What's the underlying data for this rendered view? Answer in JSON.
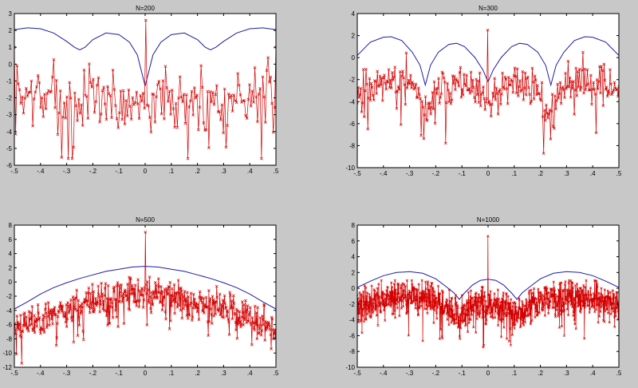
{
  "figure": {
    "background": "#c8c8c8",
    "plot_background": "#ffffff",
    "axes_color": "#000000"
  },
  "chart_data": [
    {
      "type": "line",
      "title": "N=200",
      "xlim": [
        -0.5,
        0.5
      ],
      "ylim": [
        -6,
        3
      ],
      "xticks": [
        -0.5,
        -0.4,
        -0.3,
        -0.2,
        -0.1,
        0,
        0.1,
        0.2,
        0.3,
        0.4,
        0.5
      ],
      "yticks": [
        -6,
        -5,
        -4,
        -3,
        -2,
        -1,
        0,
        1,
        2,
        3
      ],
      "grid": false,
      "series": [
        {
          "style": "line",
          "color": "#1c1ca8",
          "x": [
            -0.5,
            -0.45,
            -0.4,
            -0.35,
            -0.3,
            -0.27,
            -0.25,
            -0.23,
            -0.2,
            -0.15,
            -0.1,
            -0.06,
            -0.03,
            0,
            0.03,
            0.06,
            0.1,
            0.15,
            0.2,
            0.23,
            0.25,
            0.27,
            0.3,
            0.35,
            0.4,
            0.45,
            0.5
          ],
          "y": [
            2.05,
            2.15,
            2.1,
            1.85,
            1.35,
            1.0,
            0.85,
            1.0,
            1.45,
            1.85,
            1.75,
            1.3,
            0.55,
            -1.3,
            0.55,
            1.3,
            1.75,
            1.85,
            1.45,
            1.0,
            0.85,
            1.0,
            1.35,
            1.85,
            2.1,
            2.15,
            2.05
          ]
        },
        {
          "style": "line-x-markers",
          "color": "#d40000",
          "n": 200,
          "seed": 7,
          "env": {
            "x": [
              -0.5,
              -0.3,
              -0.15,
              -0.05,
              0,
              0.05,
              0.15,
              0.3,
              0.5
            ],
            "y": [
              -2.0,
              -1.9,
              -2.0,
              -2.2,
              -2.2,
              -2.2,
              -2.0,
              -1.9,
              -2.0
            ]
          },
          "spread": 1.2,
          "max": 1.4,
          "min": -5.6,
          "spikes": [
            {
              "x": 0,
              "y": 2.6
            },
            {
              "x": -0.5,
              "y": 1.0
            },
            {
              "x": 0.5,
              "y": 1.0
            }
          ]
        }
      ]
    },
    {
      "type": "line",
      "title": "N=300",
      "xlim": [
        -0.5,
        0.5
      ],
      "ylim": [
        -10,
        4
      ],
      "xticks": [
        -0.5,
        -0.4,
        -0.3,
        -0.2,
        -0.1,
        0,
        0.1,
        0.2,
        0.3,
        0.4,
        0.5
      ],
      "yticks": [
        -10,
        -8,
        -6,
        -4,
        -2,
        0,
        2,
        4
      ],
      "grid": false,
      "series": [
        {
          "style": "line",
          "color": "#1c1ca8",
          "x": [
            -0.5,
            -0.45,
            -0.4,
            -0.37,
            -0.33,
            -0.29,
            -0.26,
            -0.24,
            -0.22,
            -0.19,
            -0.15,
            -0.12,
            -0.09,
            -0.05,
            -0.02,
            0,
            0.02,
            0.05,
            0.09,
            0.12,
            0.15,
            0.19,
            0.22,
            0.24,
            0.26,
            0.29,
            0.33,
            0.37,
            0.4,
            0.45,
            0.5
          ],
          "y": [
            0.2,
            1.4,
            1.85,
            1.9,
            1.55,
            0.5,
            -0.7,
            -2.5,
            -0.7,
            0.5,
            1.2,
            1.3,
            1.0,
            0.0,
            -1.1,
            -2.2,
            -1.1,
            0.0,
            1.0,
            1.3,
            1.2,
            0.5,
            -0.7,
            -2.5,
            -0.7,
            0.5,
            1.55,
            1.9,
            1.85,
            1.4,
            0.2
          ]
        },
        {
          "style": "line-x-markers",
          "color": "#d40000",
          "n": 300,
          "seed": 11,
          "env": {
            "x": [
              -0.5,
              -0.4,
              -0.3,
              -0.24,
              -0.18,
              -0.1,
              -0.04,
              0,
              0.04,
              0.1,
              0.18,
              0.24,
              0.3,
              0.4,
              0.5
            ],
            "y": [
              -3.0,
              -2.0,
              -2.0,
              -5.3,
              -2.6,
              -2.2,
              -3.6,
              -4.3,
              -3.6,
              -2.2,
              -2.6,
              -5.3,
              -2.0,
              -2.0,
              -3.0
            ]
          },
          "spread": 1.1,
          "max": 1.5,
          "min": -8.7,
          "spikes": [
            {
              "x": 0,
              "y": 2.5
            }
          ]
        }
      ]
    },
    {
      "type": "line",
      "title": "N=500",
      "xlim": [
        -0.5,
        0.5
      ],
      "ylim": [
        -12,
        8
      ],
      "xticks": [
        -0.5,
        -0.4,
        -0.3,
        -0.2,
        -0.1,
        0,
        0.1,
        0.2,
        0.3,
        0.4,
        0.5
      ],
      "yticks": [
        -12,
        -10,
        -8,
        -6,
        -4,
        -2,
        0,
        2,
        4,
        6,
        8
      ],
      "grid": false,
      "series": [
        {
          "style": "line",
          "color": "#1c1ca8",
          "x": [
            -0.5,
            -0.45,
            -0.4,
            -0.35,
            -0.3,
            -0.25,
            -0.2,
            -0.15,
            -0.1,
            -0.05,
            0,
            0.05,
            0.1,
            0.15,
            0.2,
            0.25,
            0.3,
            0.35,
            0.4,
            0.45,
            0.5
          ],
          "y": [
            -3.8,
            -2.8,
            -1.7,
            -0.8,
            -0.1,
            0.5,
            1.0,
            1.5,
            1.8,
            2.1,
            2.2,
            2.1,
            1.8,
            1.5,
            1.0,
            0.5,
            -0.1,
            -0.8,
            -1.7,
            -2.8,
            -3.8
          ]
        },
        {
          "style": "line-x-markers",
          "color": "#d40000",
          "n": 500,
          "seed": 23,
          "env": {
            "x": [
              -0.5,
              -0.4,
              -0.3,
              -0.2,
              -0.1,
              0,
              0.1,
              0.2,
              0.3,
              0.4,
              0.5
            ],
            "y": [
              -6.5,
              -5.0,
              -3.8,
              -2.8,
              -1.9,
              -1.5,
              -1.9,
              -2.8,
              -3.8,
              -5.0,
              -6.5
            ]
          },
          "spread": 1.4,
          "max": 0.7,
          "min": -11.5,
          "spikes": [
            {
              "x": 0,
              "y": 7.0
            }
          ]
        }
      ]
    },
    {
      "type": "line",
      "title": "N=1000",
      "xlim": [
        -0.5,
        0.5
      ],
      "ylim": [
        -10,
        8
      ],
      "xticks": [
        -0.5,
        -0.4,
        -0.3,
        -0.2,
        -0.1,
        0,
        0.1,
        0.2,
        0.3,
        0.4,
        0.5
      ],
      "yticks": [
        -10,
        -8,
        -6,
        -4,
        -2,
        0,
        2,
        4,
        6,
        8
      ],
      "grid": false,
      "series": [
        {
          "style": "line",
          "color": "#1c1ca8",
          "x": [
            -0.5,
            -0.45,
            -0.4,
            -0.35,
            -0.3,
            -0.25,
            -0.2,
            -0.16,
            -0.13,
            -0.11,
            -0.09,
            -0.06,
            -0.03,
            0,
            0.03,
            0.06,
            0.09,
            0.11,
            0.13,
            0.16,
            0.2,
            0.25,
            0.3,
            0.35,
            0.4,
            0.45,
            0.5
          ],
          "y": [
            0.1,
            0.9,
            1.6,
            2.0,
            2.1,
            1.9,
            1.2,
            0.2,
            -0.6,
            -1.4,
            -0.6,
            0.4,
            1.0,
            1.15,
            1.0,
            0.4,
            -0.6,
            -1.4,
            -0.6,
            0.2,
            1.2,
            1.9,
            2.1,
            2.0,
            1.6,
            0.9,
            0.1
          ]
        },
        {
          "style": "line-x-markers",
          "color": "#d40000",
          "n": 1000,
          "seed": 41,
          "env": {
            "x": [
              -0.5,
              -0.4,
              -0.3,
              -0.2,
              -0.15,
              -0.11,
              -0.06,
              0,
              0.06,
              0.11,
              0.15,
              0.2,
              0.3,
              0.4,
              0.5
            ],
            "y": [
              -2.2,
              -1.3,
              -1.0,
              -1.5,
              -2.6,
              -3.6,
              -2.2,
              -2.0,
              -2.2,
              -3.6,
              -2.6,
              -1.5,
              -1.0,
              -1.3,
              -2.2
            ]
          },
          "spread": 1.3,
          "max": 1.0,
          "min": -9.3,
          "spikes": [
            {
              "x": 0,
              "y": 6.6
            }
          ]
        }
      ]
    }
  ]
}
